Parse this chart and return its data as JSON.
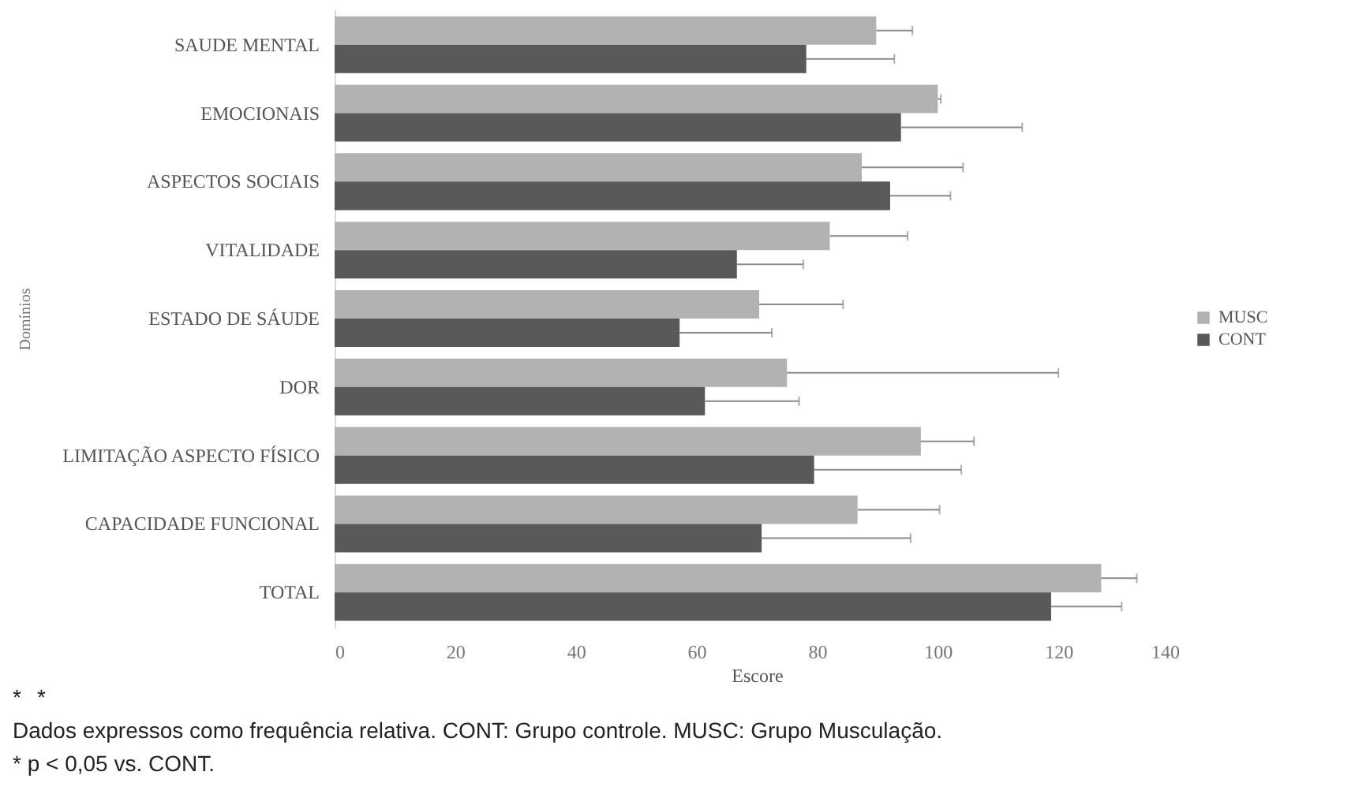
{
  "chart_data": {
    "type": "bar",
    "orientation": "horizontal",
    "xlabel": "Escore",
    "ylabel": "Domínios",
    "categories": [
      "SAUDE MENTAL",
      "EMOCIONAIS",
      "ASPECTOS SOCIAIS",
      "VITALIDADE",
      "ESTADO DE SÁUDE",
      "DOR",
      "LIMITAÇÃO ASPECTO FÍSICO",
      "CAPACIDADE FUNCIONAL",
      "TOTAL"
    ],
    "series": [
      {
        "name": "MUSC",
        "color": "#b2b2b2",
        "values": [
          89.8,
          100,
          87.4,
          82.1,
          70.4,
          75,
          97.2,
          86.7,
          127.1
        ],
        "errors": [
          [
            89.8,
            95.8
          ],
          [
            100,
            100.5
          ],
          [
            87.4,
            104.2
          ],
          [
            82.1,
            95
          ],
          [
            70.4,
            84.3
          ],
          [
            75,
            120
          ],
          [
            97.2,
            106
          ],
          [
            86.7,
            100.3
          ],
          [
            127.1,
            133
          ]
        ]
      },
      {
        "name": "CONT",
        "color": "#595959",
        "values": [
          78.2,
          93.9,
          92.1,
          66.7,
          57.2,
          61.4,
          79.5,
          70.8,
          118.8
        ],
        "errors": [
          [
            78.2,
            92.8
          ],
          [
            93.9,
            114
          ],
          [
            92.1,
            102.1
          ],
          [
            66.7,
            77.7
          ],
          [
            57.2,
            72.5
          ],
          [
            61.4,
            77
          ],
          [
            79.5,
            103.9
          ],
          [
            70.8,
            95.5
          ],
          [
            118.8,
            130.5
          ]
        ]
      }
    ],
    "xlim": [
      0,
      140
    ],
    "xticks": [
      0,
      20,
      40,
      60,
      80,
      100,
      120,
      140
    ],
    "grid": false,
    "legend": "right",
    "annotations": [
      "*",
      "*",
      "Dados expressos como frequência relativa. CONT: Grupo controle. MUSC: Grupo Musculação.",
      "* p < 0,05 vs. CONT."
    ]
  }
}
